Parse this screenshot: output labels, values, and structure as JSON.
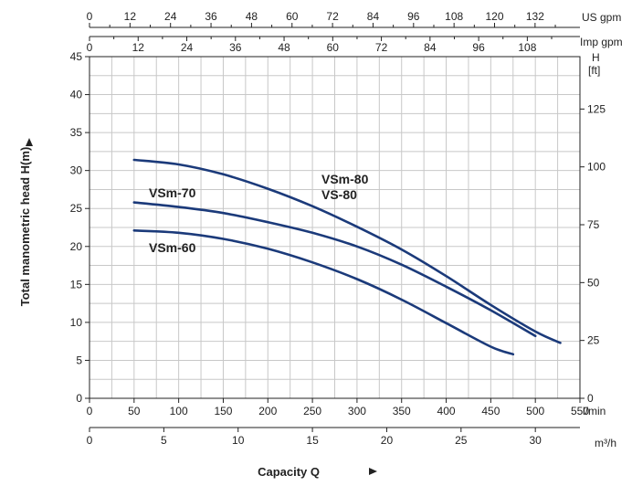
{
  "chart_data": {
    "type": "line",
    "ylabel": "Total manometric head H(m)",
    "xlabel": "Capacity Q",
    "xlim": [
      0,
      550
    ],
    "ylim": [
      0,
      45
    ],
    "x_unit": "l/min",
    "y_ticks": [
      0,
      5,
      10,
      15,
      20,
      25,
      30,
      35,
      40,
      45
    ],
    "x_ticks": [
      0,
      50,
      100,
      150,
      200,
      250,
      300,
      350,
      400,
      450,
      500,
      550
    ],
    "grid": true,
    "axes": {
      "us_gpm": {
        "label": "US gpm",
        "ticks": [
          0,
          12,
          24,
          36,
          48,
          60,
          72,
          84,
          96,
          108,
          120,
          132
        ]
      },
      "imp_gpm": {
        "label": "Imp gpm",
        "ticks": [
          0,
          12,
          24,
          36,
          48,
          60,
          72,
          84,
          96,
          108
        ]
      },
      "m3h": {
        "label": "m³/h",
        "ticks": [
          0,
          5,
          10,
          15,
          20,
          25,
          30
        ]
      },
      "feet": {
        "label_top": "H",
        "label_unit": "[ft]",
        "ticks": [
          0,
          25,
          50,
          75,
          100,
          125
        ]
      }
    },
    "series": [
      {
        "name": "VSm-80 VS-80",
        "label_lines": [
          "VSm-80",
          "VS-80"
        ],
        "color": "#1b3a7a",
        "x": [
          50,
          100,
          150,
          200,
          250,
          300,
          350,
          400,
          450,
          500,
          528
        ],
        "y": [
          31.4,
          30.8,
          29.5,
          27.6,
          25.3,
          22.6,
          19.6,
          16.1,
          12.3,
          8.8,
          7.3
        ]
      },
      {
        "name": "VSm-70",
        "label_lines": [
          "VSm-70"
        ],
        "color": "#1b3a7a",
        "x": [
          50,
          100,
          150,
          200,
          250,
          300,
          350,
          400,
          450,
          500
        ],
        "y": [
          25.8,
          25.2,
          24.4,
          23.2,
          21.8,
          20.0,
          17.6,
          14.7,
          11.6,
          8.2
        ]
      },
      {
        "name": "VSm-60",
        "label_lines": [
          "VSm-60"
        ],
        "color": "#1b3a7a",
        "x": [
          50,
          100,
          150,
          200,
          250,
          300,
          350,
          400,
          450,
          475
        ],
        "y": [
          22.1,
          21.8,
          21.0,
          19.7,
          17.9,
          15.7,
          13.0,
          9.9,
          6.8,
          5.8
        ]
      }
    ]
  }
}
